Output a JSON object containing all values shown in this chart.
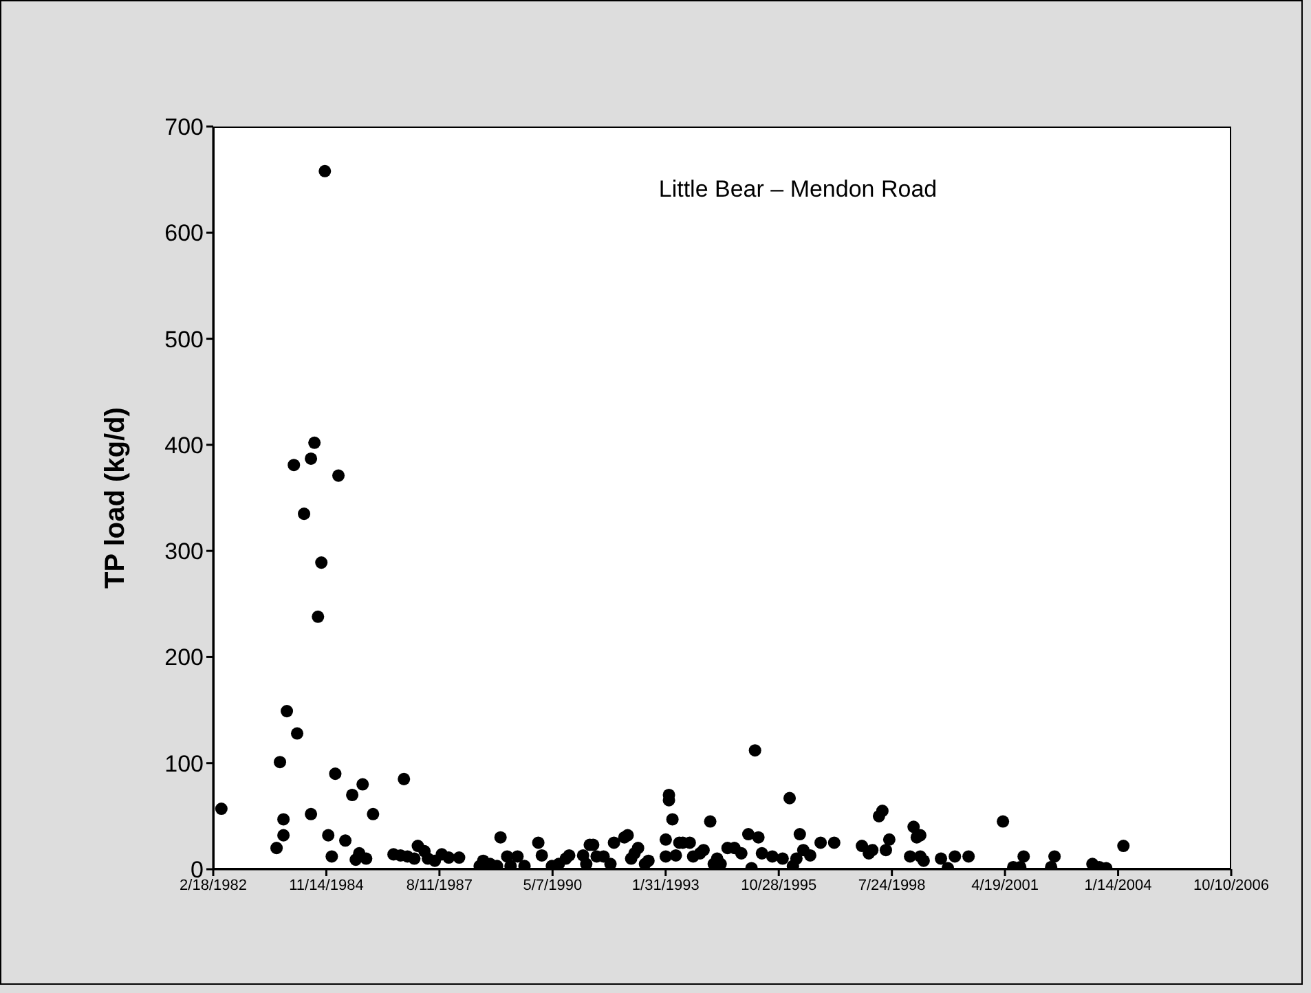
{
  "chart_data": {
    "type": "scatter",
    "title": "Little Bear – Mendon Road",
    "ylabel": "TP load (kg/d)",
    "x": [
      "1982-05",
      "1983-09",
      "1983-10",
      "1983-11",
      "1983-11",
      "1983-12",
      "1984-02",
      "1984-03",
      "1984-05",
      "1984-07",
      "1984-07",
      "1984-08",
      "1984-09",
      "1984-10",
      "1984-11",
      "1984-12",
      "1985-01",
      "1985-02",
      "1985-03",
      "1985-05",
      "1985-07",
      "1985-08",
      "1985-09",
      "1985-10",
      "1985-11",
      "1986-01",
      "1986-07",
      "1986-09",
      "1986-10",
      "1986-11",
      "1987-01",
      "1987-02",
      "1987-04",
      "1987-05",
      "1987-07",
      "1987-09",
      "1987-11",
      "1988-02",
      "1988-08",
      "1988-09",
      "1988-11",
      "1989-01",
      "1989-02",
      "1989-04",
      "1989-05",
      "1989-07",
      "1989-09",
      "1990-01",
      "1990-02",
      "1990-05",
      "1990-07",
      "1990-09",
      "1990-10",
      "1991-02",
      "1991-03",
      "1991-04",
      "1991-05",
      "1991-06",
      "1991-08",
      "1991-10",
      "1991-11",
      "1992-02",
      "1992-03",
      "1992-04",
      "1992-05",
      "1992-06",
      "1992-08",
      "1992-09",
      "1993-02",
      "1993-02",
      "1993-03",
      "1993-03",
      "1993-04",
      "1993-05",
      "1993-06",
      "1993-07",
      "1993-09",
      "1993-10",
      "1993-12",
      "1994-01",
      "1994-03",
      "1994-04",
      "1994-05",
      "1994-06",
      "1994-08",
      "1994-10",
      "1994-12",
      "1995-02",
      "1995-03",
      "1995-04",
      "1995-05",
      "1995-06",
      "1995-09",
      "1995-12",
      "1996-02",
      "1996-03",
      "1996-04",
      "1996-05",
      "1996-06",
      "1996-08",
      "1996-11",
      "1997-03",
      "1997-11",
      "1998-01",
      "1998-02",
      "1998-04",
      "1998-05",
      "1998-06",
      "1998-07",
      "1999-02",
      "1999-03",
      "1999-04",
      "1999-01",
      "1999-04",
      "1999-05",
      "1999-10",
      "1999-12",
      "2000-02",
      "2000-06",
      "2001-04",
      "2001-07",
      "2001-09",
      "2001-10",
      "2002-06",
      "2002-07",
      "2003-06",
      "2003-08",
      "2003-10",
      "2004-03"
    ],
    "values": [
      57,
      20,
      101,
      32,
      47,
      149,
      381,
      128,
      335,
      387,
      52,
      402,
      238,
      289,
      658,
      32,
      12,
      90,
      371,
      27,
      70,
      9,
      15,
      80,
      10,
      52,
      14,
      13,
      85,
      12,
      10,
      22,
      17,
      10,
      8,
      14,
      11,
      11,
      3,
      8,
      5,
      3,
      30,
      12,
      3,
      12,
      3,
      25,
      13,
      3,
      5,
      10,
      13,
      13,
      5,
      23,
      23,
      12,
      12,
      5,
      25,
      30,
      32,
      10,
      15,
      20,
      5,
      8,
      12,
      28,
      65,
      70,
      47,
      13,
      25,
      25,
      25,
      12,
      15,
      18,
      45,
      5,
      10,
      5,
      20,
      20,
      15,
      33,
      1,
      112,
      30,
      15,
      12,
      10,
      67,
      3,
      10,
      33,
      18,
      13,
      25,
      25,
      22,
      15,
      18,
      50,
      55,
      18,
      28,
      40,
      30,
      32,
      12,
      12,
      8,
      10,
      1,
      12,
      12,
      45,
      2,
      2,
      12,
      2,
      12,
      5,
      2,
      1,
      22
    ],
    "color": "#000000",
    "marker": "circle",
    "grid": false,
    "xlim": [
      "1982-02-18",
      "2006-10-10"
    ],
    "xticks": [
      {
        "value": "1982-02-18",
        "label": "2/18/1982"
      },
      {
        "value": "1984-11-14",
        "label": "11/14/1984"
      },
      {
        "value": "1987-08-11",
        "label": "8/11/1987"
      },
      {
        "value": "1990-05-07",
        "label": "5/7/1990"
      },
      {
        "value": "1993-01-31",
        "label": "1/31/1993"
      },
      {
        "value": "1995-10-28",
        "label": "10/28/1995"
      },
      {
        "value": "1998-07-24",
        "label": "7/24/1998"
      },
      {
        "value": "2001-04-19",
        "label": "4/19/2001"
      },
      {
        "value": "2004-01-14",
        "label": "1/14/2004"
      },
      {
        "value": "2006-10-10",
        "label": "10/10/2006"
      }
    ],
    "ylim": [
      0,
      700
    ],
    "yticks": [
      0,
      100,
      200,
      300,
      400,
      500,
      600,
      700
    ]
  }
}
